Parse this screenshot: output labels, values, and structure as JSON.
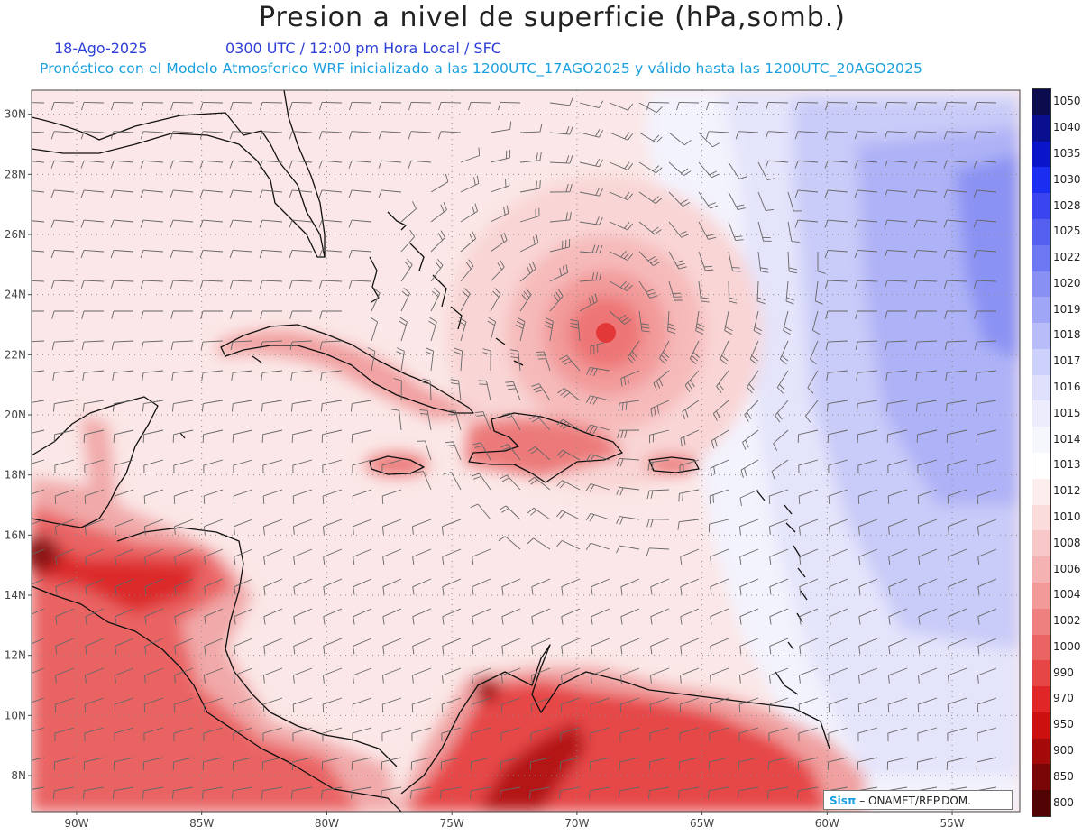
{
  "header": {
    "title": "Presion a nivel de superficie (hPa,somb.)",
    "date": "18-Ago-2025",
    "valid_time": "0300 UTC / 12:00 pm Hora Local / SFC",
    "forecast_info": "Pronóstico con el Modelo Atmosferico WRF inicializado a las 1200UTC_17AGO2025 y válido hasta las  1200UTC_20AGO2025"
  },
  "map": {
    "lat_labels": [
      "30N",
      "28N",
      "26N",
      "24N",
      "22N",
      "20N",
      "18N",
      "16N",
      "14N",
      "12N",
      "10N",
      "8N"
    ],
    "lon_labels": [
      "90W",
      "85W",
      "80W",
      "75W",
      "70W",
      "65W",
      "60W",
      "55W"
    ],
    "low_pressure_center": {
      "lon": -69.0,
      "lat": 22.8
    }
  },
  "colorbar": {
    "levels": [
      "1050",
      "1040",
      "1035",
      "1030",
      "1028",
      "1025",
      "1022",
      "1020",
      "1019",
      "1018",
      "1017",
      "1016",
      "1015",
      "1014",
      "1013",
      "1012",
      "1010",
      "1008",
      "1006",
      "1004",
      "1002",
      "1000",
      "990",
      "970",
      "950",
      "900",
      "850",
      "800"
    ],
    "colors": [
      "#0b0b4e",
      "#0a0f8f",
      "#0a14c8",
      "#1a2df0",
      "#3a45f0",
      "#5560f0",
      "#6e78f2",
      "#8890f4",
      "#a0a6f6",
      "#b8bcf8",
      "#cdd0fa",
      "#dfe0fb",
      "#ececfc",
      "#f6f6fd",
      "#ffffff",
      "#fdeeee",
      "#fbdcdc",
      "#f8c8c8",
      "#f5b2b2",
      "#f29a9a",
      "#ee8080",
      "#ea6464",
      "#e64646",
      "#e02626",
      "#cc0f0f",
      "#a50a0a",
      "#7a0707",
      "#520404"
    ]
  },
  "credit": {
    "logo": "Sisπ",
    "text": "– ONAMET/REP.DOM."
  },
  "colors": {
    "title": "#222222",
    "subtitle_blue": "#2d3fd6",
    "subtitle_cyan": "#19a0e0",
    "coast": "#111111"
  }
}
